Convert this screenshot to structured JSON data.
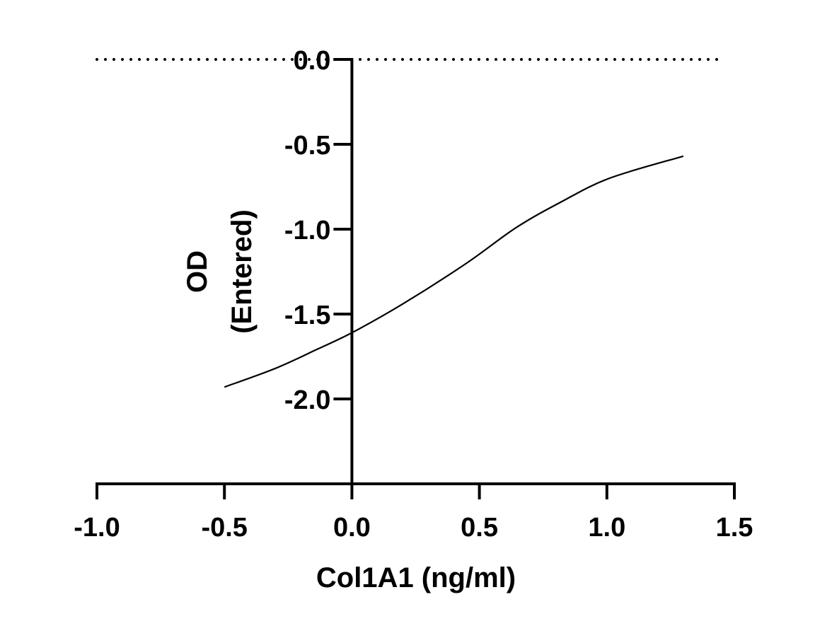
{
  "chart_data": {
    "type": "line",
    "title": "",
    "xlabel": "Col1A1 (ng/ml)",
    "ylabel_lines": [
      "OD",
      "(Entered)"
    ],
    "xlim": [
      -1.0,
      1.5
    ],
    "ylim": [
      -2.5,
      0.0
    ],
    "x_ticks": [
      "-1.0",
      "-0.5",
      "0.0",
      "0.5",
      "1.0",
      "1.5"
    ],
    "y_ticks": [
      "0.0",
      "-0.5",
      "-1.0",
      "-1.5",
      "-2.0"
    ],
    "grid": false,
    "reference_line": {
      "y": 0.0,
      "style": "dotted"
    },
    "series": [
      {
        "x": [
          -0.5,
          -0.3,
          -0.14,
          0.0,
          0.2,
          0.45,
          0.645,
          0.82,
          1.01,
          1.3
        ],
        "y": [
          -1.93,
          -1.82,
          -1.71,
          -1.61,
          -1.44,
          -1.2,
          -0.99,
          -0.84,
          -0.7,
          -0.57
        ]
      }
    ],
    "colors": {
      "line": "#000000",
      "axis": "#000000"
    }
  }
}
